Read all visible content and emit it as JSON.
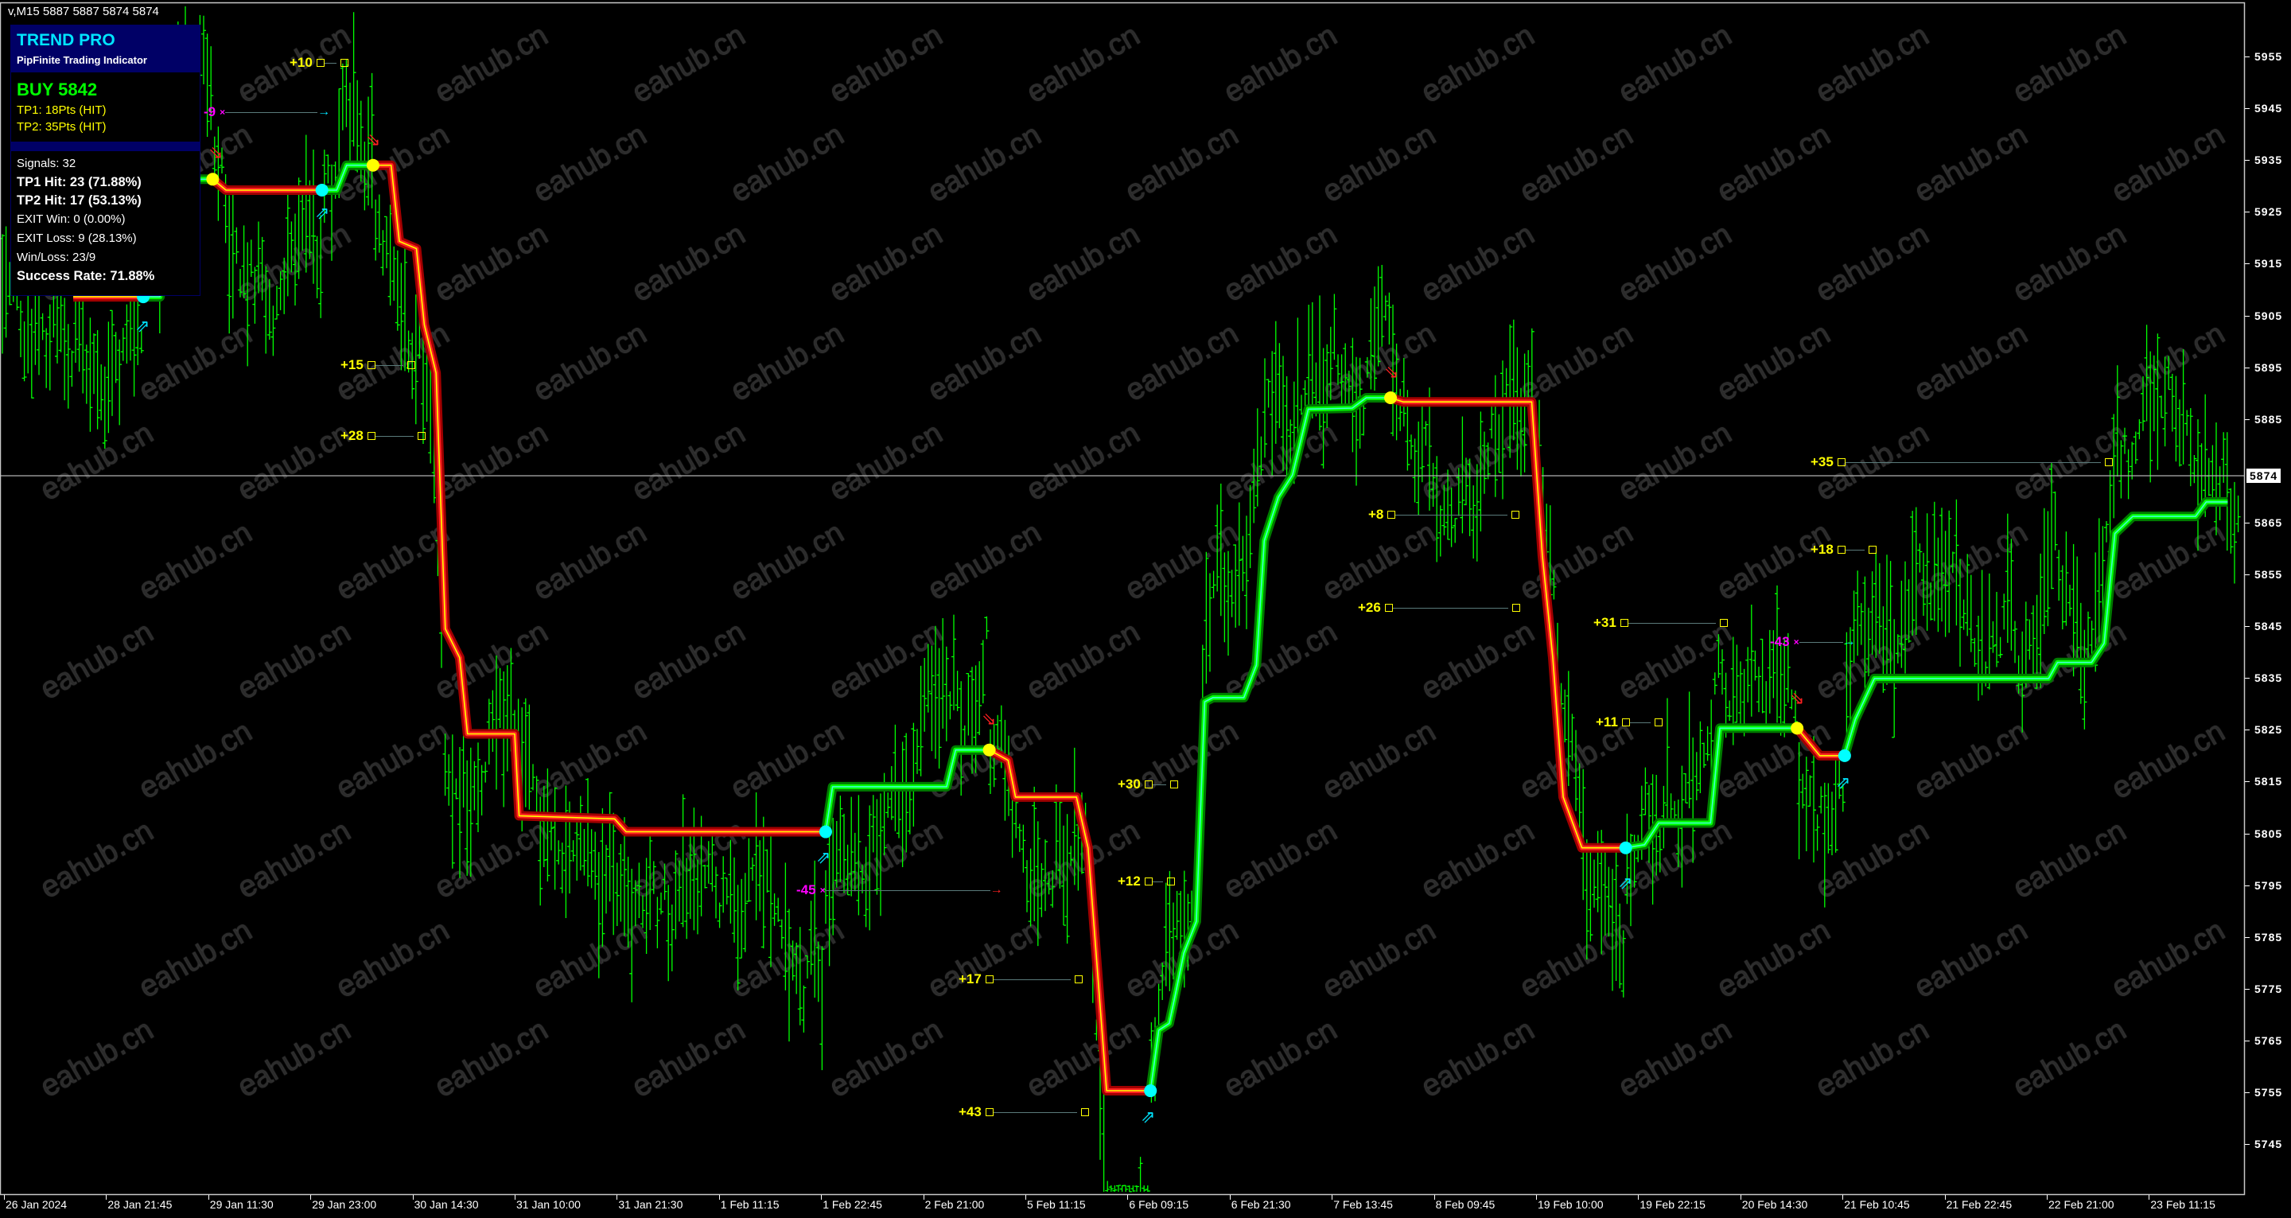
{
  "header": {
    "text": "v,M15  5887 5887 5874 5874"
  },
  "panel": {
    "title": "TREND PRO",
    "subtitle": "PipFinite Trading Indicator",
    "signal": "BUY 5842",
    "tp1": "TP1: 18Pts (HIT)",
    "tp2": "TP2: 35Pts (HIT)",
    "signals": "Signals: 32",
    "tp1_hit": "TP1 Hit: 23 (71.88%)",
    "tp2_hit": "TP2 Hit: 17 (53.13%)",
    "exit_win": "EXIT Win: 0 (0.00%)",
    "exit_loss": "EXIT Loss: 9 (28.13%)",
    "win_loss": "Win/Loss: 23/9",
    "success_rate": "Success Rate: 71.88%"
  },
  "watermark": "eahub.cn",
  "colors": {
    "background": "#000000",
    "bars": "#00ff00",
    "uptrend": "#00ff00",
    "downtrend": "#ff2020",
    "profit_label": "#ffff00",
    "loss_label": "#ff00ff",
    "signal_up_dot": "#00ffff",
    "signal_down_dot": "#ffff00",
    "panel_header": "#000066"
  },
  "annotations": [
    {
      "text": "+10",
      "kind": "profit"
    },
    {
      "text": "+15",
      "kind": "profit"
    },
    {
      "text": "+28",
      "kind": "profit"
    },
    {
      "text": "+8",
      "kind": "profit"
    },
    {
      "text": "+26",
      "kind": "profit"
    },
    {
      "text": "+31",
      "kind": "profit"
    },
    {
      "text": "+11",
      "kind": "profit"
    },
    {
      "text": "+35",
      "kind": "profit"
    },
    {
      "text": "+18",
      "kind": "profit"
    },
    {
      "text": "+30",
      "kind": "profit"
    },
    {
      "text": "+12",
      "kind": "profit"
    },
    {
      "text": "+17",
      "kind": "profit"
    },
    {
      "text": "+43",
      "kind": "profit"
    },
    {
      "text": "-45",
      "kind": "loss"
    },
    {
      "text": "-43",
      "kind": "loss"
    },
    {
      "text": "-9",
      "kind": "loss"
    }
  ],
  "chart_data": {
    "type": "line",
    "symbol_timeframe": "M15",
    "last_bar_ohlc": [
      5887,
      5887,
      5874,
      5874
    ],
    "current_price": "5874",
    "y_axis": {
      "ticks": [
        "5955",
        "5945",
        "5935",
        "5925",
        "5915",
        "5905",
        "5895",
        "5885",
        "5865",
        "5855",
        "5845",
        "5835",
        "5825",
        "5815",
        "5805",
        "5795",
        "5785",
        "5775",
        "5765",
        "5755",
        "5745"
      ],
      "range": [
        5745,
        5955
      ]
    },
    "x_axis": {
      "ticks": [
        "26 Jan 2024",
        "28 Jan 21:45",
        "29 Jan 11:30",
        "29 Jan 23:00",
        "30 Jan 14:30",
        "31 Jan 10:00",
        "31 Jan 21:30",
        "1 Feb 11:15",
        "1 Feb 22:45",
        "2 Feb 21:00",
        "5 Feb 11:15",
        "6 Feb 09:15",
        "6 Feb 21:30",
        "7 Feb 13:45",
        "8 Feb 09:45",
        "19 Feb 10:00",
        "19 Feb 22:15",
        "20 Feb 14:30",
        "21 Feb 10:45",
        "21 Feb 22:45",
        "22 Feb 21:00",
        "23 Feb 11:15"
      ]
    },
    "grid": false,
    "trend_line": [
      {
        "trend": "down",
        "points": [
          [
            "27 Jan 23:15",
            5908.6
          ],
          [
            "29 Jan 02:45",
            5908.6
          ]
        ]
      },
      {
        "trend": "up",
        "points": [
          [
            "29 Jan 02:45",
            5908.6
          ],
          [
            "29 Jan 05:00",
            5908.6
          ],
          [
            "29 Jan 07:00",
            5931.3
          ],
          [
            "29 Jan 12:00",
            5931.3
          ]
        ]
      },
      {
        "trend": "down",
        "points": [
          [
            "29 Jan 12:00",
            5931.3
          ],
          [
            "29 Jan 13:30",
            5929.2
          ],
          [
            "30 Jan 00:45",
            5929.2
          ]
        ]
      },
      {
        "trend": "up",
        "points": [
          [
            "30 Jan 00:45",
            5929.2
          ],
          [
            "30 Jan 03:00",
            5929.2
          ],
          [
            "30 Jan 04:30",
            5934
          ],
          [
            "30 Jan 08:30",
            5934
          ]
        ]
      },
      {
        "trend": "down",
        "points": [
          [
            "30 Jan 08:30",
            5934
          ],
          [
            "30 Jan 11:15",
            5934
          ],
          [
            "30 Jan 12:30",
            5919.3
          ],
          [
            "30 Jan 15:15",
            5917.9
          ],
          [
            "30 Jan 16:45",
            5903.2
          ],
          [
            "30 Jan 19:00",
            5893.9
          ],
          [
            "30 Jan 20:45",
            5844.5
          ],
          [
            "30 Jan 23:30",
            5838.9
          ],
          [
            "31 Jan 01:00",
            5824.2
          ],
          [
            "31 Jan 10:00",
            5824.2
          ],
          [
            "31 Jan 10:30",
            5808.4
          ],
          [
            "31 Jan 21:15",
            5807.8
          ],
          [
            "31 Jan 22:45",
            5805.3
          ],
          [
            "1 Feb 23:45",
            5805.3
          ]
        ]
      },
      {
        "trend": "up",
        "points": [
          [
            "1 Feb 23:45",
            5805.3
          ],
          [
            "2 Feb 01:15",
            5814
          ],
          [
            "3 Feb 11:15",
            5814
          ],
          [
            "3 Feb 16:45",
            5821.1
          ],
          [
            "4 Feb 13:15",
            5821.1
          ]
        ]
      },
      {
        "trend": "down",
        "points": [
          [
            "4 Feb 13:15",
            5821.1
          ],
          [
            "5 Feb 00:45",
            5819.1
          ],
          [
            "5 Feb 05:15",
            5812
          ],
          [
            "5 Feb 22:15",
            5812
          ],
          [
            "6 Feb 00:45",
            5802.2
          ],
          [
            "6 Feb 04:45",
            5755.3
          ],
          [
            "6 Feb 12:00",
            5755.3
          ]
        ]
      },
      {
        "trend": "up",
        "points": [
          [
            "6 Feb 12:00",
            5755.3
          ],
          [
            "6 Feb 13:00",
            5767
          ],
          [
            "6 Feb 14:15",
            5768.3
          ],
          [
            "6 Feb 15:00",
            5774
          ],
          [
            "6 Feb 16:00",
            5781.9
          ],
          [
            "6 Feb 17:30",
            5788
          ],
          [
            "6 Feb 18:30",
            5830.4
          ],
          [
            "6 Feb 19:30",
            5831.2
          ],
          [
            "6 Feb 23:45",
            5831.2
          ],
          [
            "7 Feb 01:45",
            5837.5
          ],
          [
            "7 Feb 03:00",
            5861.5
          ],
          [
            "7 Feb 05:15",
            5869.9
          ],
          [
            "7 Feb 07:30",
            5874.2
          ],
          [
            "7 Feb 10:00",
            5886.9
          ],
          [
            "7 Feb 17:45",
            5887.1
          ],
          [
            "7 Feb 20:30",
            5889.1
          ],
          [
            "8 Feb 01:15",
            5889.1
          ]
        ]
      },
      {
        "trend": "down",
        "points": [
          [
            "8 Feb 01:15",
            5889.1
          ],
          [
            "8 Feb 03:45",
            5888.3
          ],
          [
            "18 Feb 22:45",
            5888.3
          ],
          [
            "19 Feb 10:45",
            5858.6
          ],
          [
            "19 Feb 12:00",
            5838.9
          ],
          [
            "19 Feb 13:15",
            5812
          ],
          [
            "19 Feb 15:30",
            5802.2
          ],
          [
            "19 Feb 20:45",
            5802.2
          ]
        ]
      },
      {
        "trend": "up",
        "points": [
          [
            "19 Feb 20:45",
            5802.2
          ],
          [
            "19 Feb 23:15",
            5802.8
          ],
          [
            "20 Feb 01:30",
            5807
          ],
          [
            "20 Feb 09:45",
            5807
          ],
          [
            "20 Feb 11:15",
            5825.3
          ],
          [
            "21 Feb 01:45",
            5825.3
          ]
        ]
      },
      {
        "trend": "down",
        "points": [
          [
            "21 Feb 01:45",
            5825.3
          ],
          [
            "21 Feb 06:15",
            5820
          ],
          [
            "21 Feb 11:00",
            5820
          ]
        ]
      },
      {
        "trend": "up",
        "points": [
          [
            "21 Feb 11:00",
            5820
          ],
          [
            "21 Feb 12:15",
            5827
          ],
          [
            "21 Feb 14:30",
            5834.9
          ],
          [
            "22 Feb 21:15",
            5834.9
          ],
          [
            "22 Feb 22:30",
            5838
          ],
          [
            "23 Feb 03:15",
            5838
          ],
          [
            "23 Feb 05:00",
            5841.7
          ],
          [
            "23 Feb 06:30",
            5862.9
          ],
          [
            "23 Feb 09:00",
            5866.2
          ],
          [
            "23 Feb 17:45",
            5866.2
          ],
          [
            "23 Feb 19:15",
            5869
          ],
          [
            "23 Feb 22:15",
            5869
          ]
        ]
      }
    ]
  }
}
